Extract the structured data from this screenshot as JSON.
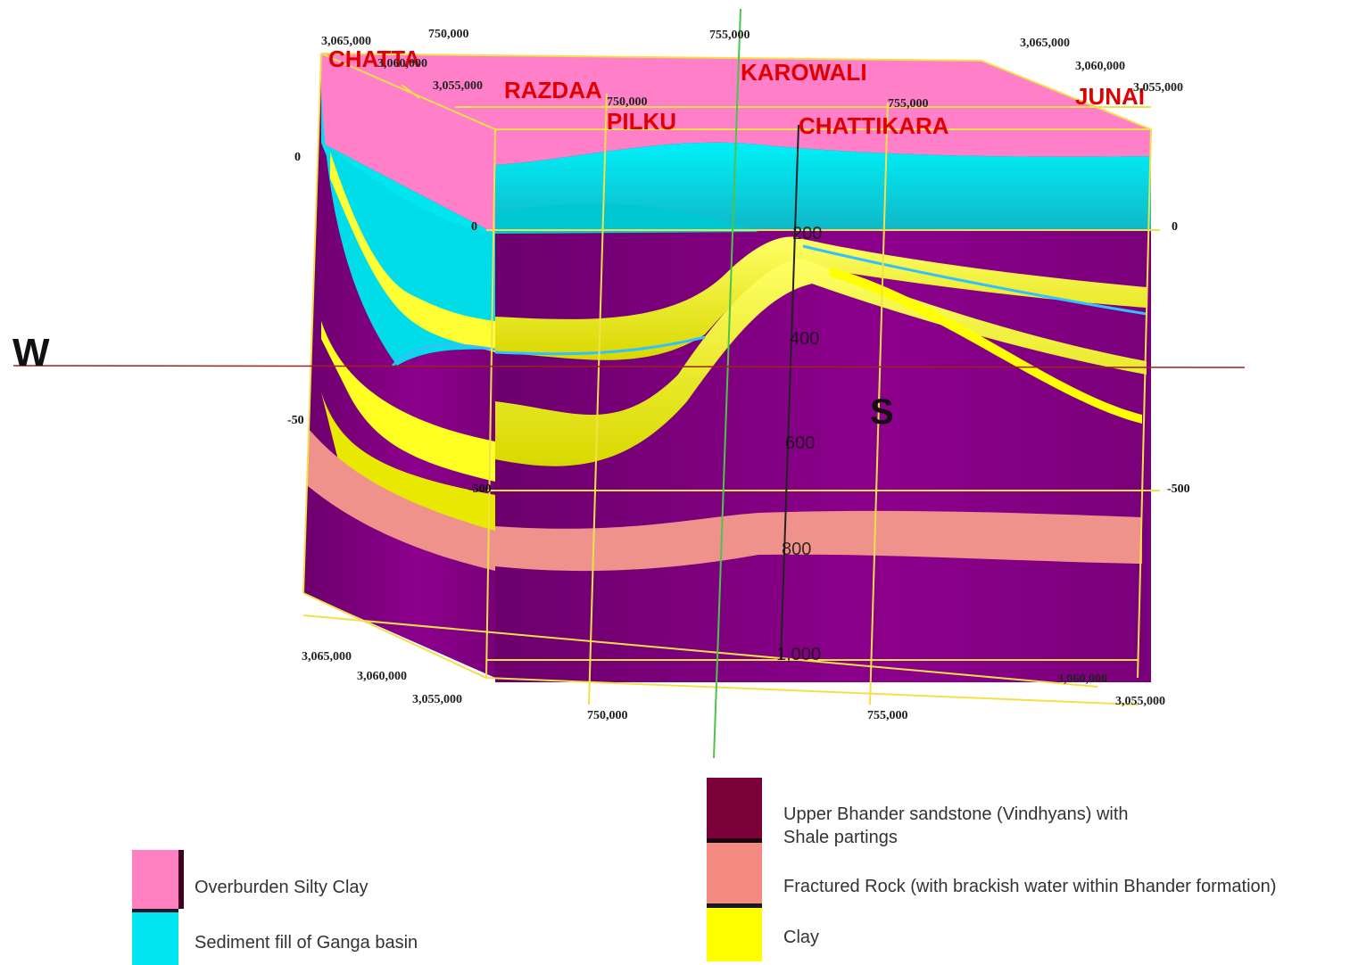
{
  "place_labels": [
    "CHATTA",
    "RAZDAA",
    "KAROWALI",
    "JUNAI",
    "PILKU",
    "CHATTIKARA"
  ],
  "coords": {
    "y3065": "3,065,000",
    "y3060": "3,060,000",
    "y3055": "3,055,000",
    "x750": "750,000",
    "x755": "755,000"
  },
  "depths": {
    "d0": "0",
    "d200": "200",
    "d400": "400",
    "d600": "600",
    "d800": "800",
    "d1000": "1,000",
    "dm500": "-500",
    "dm50": "-50"
  },
  "directions": {
    "west": "W",
    "south": "S"
  },
  "colors": {
    "overburden": "#ff80c0",
    "sediment": "#00e5f0",
    "sandstone": "#800080",
    "fractured": "#f08c8c",
    "clay": "#ffff00",
    "frame": "#f2e04a"
  },
  "legend": [
    {
      "label": "Overburden Silty Clay",
      "color": "#ff80c0"
    },
    {
      "label": "Sediment fill of Ganga basin",
      "color": "#00e5f0"
    },
    {
      "label": "Upper Bhander sandstone (Vindhyans) with\nShale partings",
      "color": "#7a0038"
    },
    {
      "label": "Fractured Rock (with brackish water within Bhander formation)",
      "color": "#f58a82"
    },
    {
      "label": "Clay",
      "color": "#ffff00"
    }
  ]
}
